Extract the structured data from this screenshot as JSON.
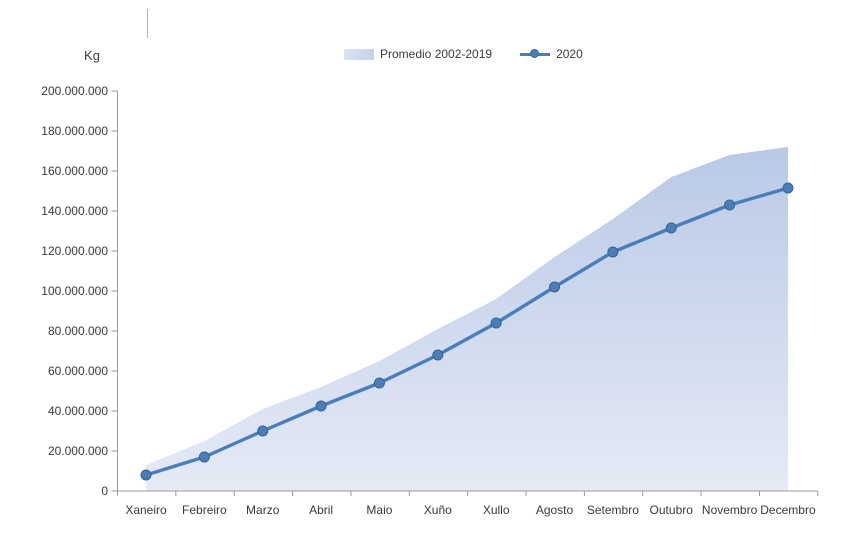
{
  "chart_data": {
    "type": "area",
    "categories": [
      "Xaneiro",
      "Febreiro",
      "Marzo",
      "Abril",
      "Maio",
      "Xuño",
      "Xullo",
      "Agosto",
      "Setembro",
      "Outubro",
      "Novembro",
      "Decembro"
    ],
    "series": [
      {
        "name": "Promedio 2002-2019",
        "type": "area",
        "values": [
          13000000,
          25000000,
          41000000,
          52000000,
          65000000,
          81000000,
          96000000,
          117000000,
          136000000,
          157000000,
          168000000,
          172000000
        ]
      },
      {
        "name": "2020",
        "type": "line",
        "values": [
          8000000,
          17000000,
          30000000,
          42500000,
          54000000,
          68000000,
          84000000,
          102000000,
          119500000,
          131500000,
          143000000,
          151500000
        ]
      }
    ],
    "title": "",
    "xlabel": "",
    "ylabel": "Kg",
    "ylim": [
      0,
      200000000
    ],
    "ytick_step": 20000000,
    "ytick_labels": [
      "0",
      "20.000.000",
      "40.000.000",
      "60.000.000",
      "80.000.000",
      "100.000.000",
      "120.000.000",
      "140.000.000",
      "160.000.000",
      "180.000.000",
      "200.000.000"
    ],
    "grid": false,
    "legend_position": "top-center",
    "number_format": "thousands-dot",
    "colors": {
      "line": "#4a7ebb",
      "marker_fill": "#4a7ebb",
      "marker_stroke": "#39648f",
      "area_top": "#b9c9e6",
      "area_bottom": "#e5eaf6",
      "axis": "#9b9b9b",
      "text": "#3a3a3a"
    }
  },
  "legend": {
    "items": [
      {
        "label": "Promedio 2002-2019"
      },
      {
        "label": "2020"
      }
    ]
  }
}
